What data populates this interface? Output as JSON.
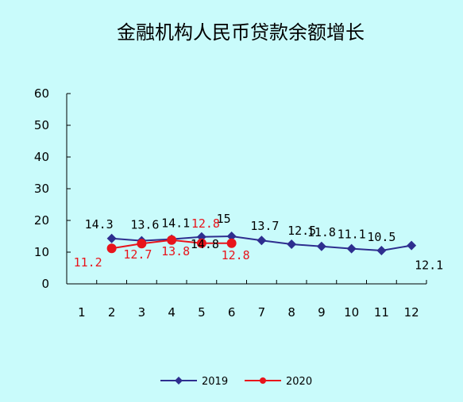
{
  "chart_data": {
    "type": "line",
    "title": "金融机构人民币贷款余额增长",
    "categories": [
      "1",
      "2",
      "3",
      "4",
      "5",
      "6",
      "7",
      "8",
      "9",
      "10",
      "11",
      "12"
    ],
    "y_ticks": [
      "0",
      "10",
      "20",
      "30",
      "40",
      "50",
      "60"
    ],
    "ylim": [
      0,
      60
    ],
    "grid": false,
    "legend_position": "bottom",
    "series": [
      {
        "name": "2019",
        "color": "#2e2e8f",
        "marker": "diamond",
        "values": [
          null,
          14.3,
          13.6,
          14.1,
          14.8,
          15,
          13.7,
          12.5,
          11.8,
          11.1,
          10.5,
          12.1
        ],
        "labels": [
          null,
          "14.3",
          "13.6",
          "14.1",
          "14.8",
          "15",
          "13.7",
          "12.5",
          "11.8",
          "11.1",
          "10.5",
          "12.1"
        ]
      },
      {
        "name": "2020",
        "color": "#e8141b",
        "marker": "circle",
        "values": [
          null,
          11.2,
          12.7,
          13.8,
          12.8,
          12.8,
          null,
          null,
          null,
          null,
          null,
          null
        ],
        "labels": [
          null,
          "11.2",
          "12.7",
          "13.8",
          "12.8",
          "12.8",
          null,
          null,
          null,
          null,
          null,
          null
        ]
      }
    ]
  }
}
